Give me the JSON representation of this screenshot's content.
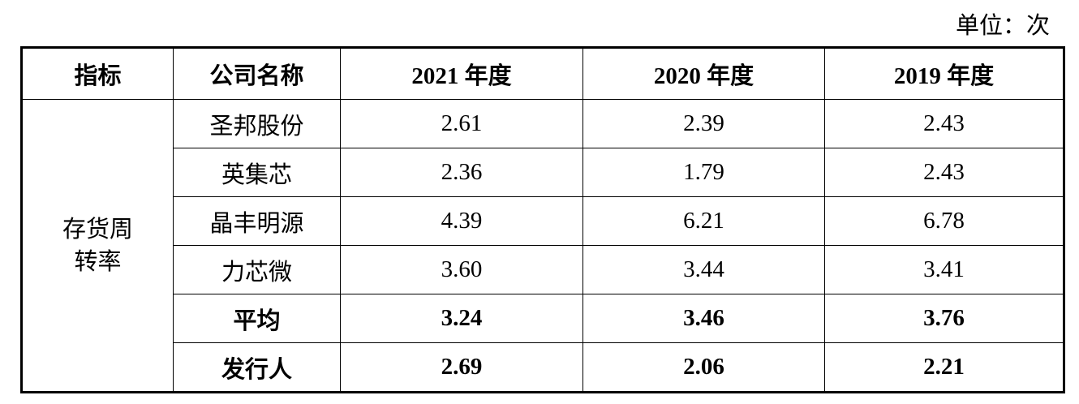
{
  "unit": "单位：次",
  "table": {
    "header": [
      "指标",
      "公司名称",
      "2021 年度",
      "2020 年度",
      "2019 年度"
    ],
    "indicator": "存货周转率",
    "rows": [
      [
        "圣邦股份",
        "2.61",
        "2.39",
        "2.43"
      ],
      [
        "英集芯",
        "2.36",
        "1.79",
        "2.43"
      ],
      [
        "晶丰明源",
        "4.39",
        "6.21",
        "6.78"
      ],
      [
        "力芯微",
        "3.60",
        "3.44",
        "3.41"
      ],
      [
        "平均",
        "3.24",
        "3.46",
        "3.76"
      ],
      [
        "发行人",
        "2.69",
        "2.06",
        "2.21"
      ]
    ]
  }
}
